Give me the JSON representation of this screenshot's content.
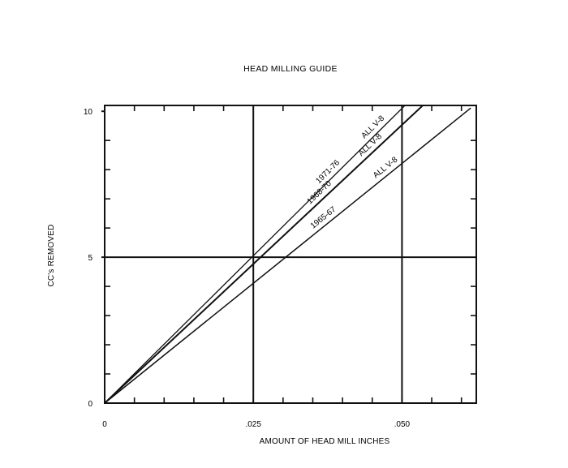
{
  "chart_data": {
    "type": "line",
    "title": "HEAD MILLING GUIDE",
    "xlabel": "AMOUNT OF HEAD MILL  INCHES",
    "ylabel": "CC's REMOVED",
    "xlim": [
      0,
      0.0625
    ],
    "ylim": [
      0,
      10.2
    ],
    "x_ticks": [
      {
        "value": 0,
        "label": "0"
      },
      {
        "value": 0.025,
        "label": ".025"
      },
      {
        "value": 0.05,
        "label": ".050"
      }
    ],
    "y_ticks": [
      {
        "value": 0,
        "label": "0"
      },
      {
        "value": 5,
        "label": "5"
      },
      {
        "value": 10,
        "label": "10"
      }
    ],
    "grid": true,
    "legend": "none",
    "series": [
      {
        "name": "1971-76  ALL V-8",
        "x": [
          0,
          0.0505
        ],
        "y": [
          0,
          10.2
        ],
        "stroke": "#111111",
        "width": 1.3,
        "label_parts": [
          "1971-76",
          "ALL V-8"
        ]
      },
      {
        "name": "1968-70  ALL V-8",
        "x": [
          0,
          0.0535
        ],
        "y": [
          0,
          10.2
        ],
        "stroke": "#111111",
        "width": 2.0,
        "label_parts": [
          "1968-70",
          "ALL V-8"
        ]
      },
      {
        "name": "1965-67  ALL V-8",
        "x": [
          0,
          0.0615
        ],
        "y": [
          0,
          10.1
        ],
        "stroke": "#111111",
        "width": 1.5,
        "label_parts": [
          "1965-67",
          "ALL V-8"
        ]
      }
    ]
  }
}
